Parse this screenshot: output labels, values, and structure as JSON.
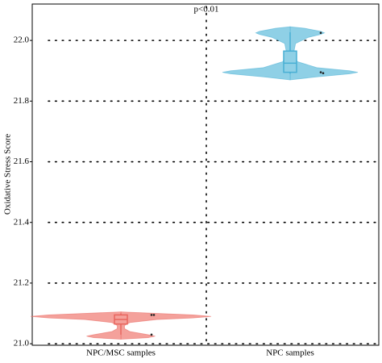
{
  "chart_data": {
    "type": "violin",
    "y_label": "Oxidative Stress Score",
    "annotation": "p<0.01",
    "categories": [
      "NPC/MSC samples",
      "NPC samples"
    ],
    "ylim": [
      20.995,
      22.12
    ],
    "yticks": [
      {
        "value": 21,
        "label": "21.0"
      },
      21.2,
      21.4,
      21.6,
      21.8,
      {
        "value": 22,
        "label": "22.0"
      }
    ],
    "grid": true,
    "series": [
      {
        "color": "#e8665f",
        "fill": "#f4a19b",
        "violin_y": [
          21.015,
          21.02,
          21.025,
          21.03,
          21.04,
          21.05,
          21.06,
          21.07,
          21.08,
          21.085,
          21.09,
          21.095,
          21.1,
          21.105
        ],
        "violin_width": [
          0,
          0.15,
          0.19,
          0.15,
          0.05,
          0.02,
          0.02,
          0.05,
          0.2,
          0.4,
          0.5,
          0.4,
          0.2,
          0
        ],
        "q1": 21.065,
        "median": 21.08,
        "q3": 21.095,
        "whisker_low": 21.03,
        "whisker_high": 21.1,
        "points": [
          21.095,
          21.095,
          21.03
        ]
      },
      {
        "color": "#49afd4",
        "fill": "#8fd0e6",
        "violin_y": [
          21.87,
          21.88,
          21.89,
          21.895,
          21.9,
          21.91,
          21.93,
          21.96,
          21.99,
          22.01,
          22.02,
          22.025,
          22.03,
          22.04,
          22.045
        ],
        "violin_width": [
          0,
          0.15,
          0.33,
          0.375,
          0.33,
          0.15,
          0.04,
          0.02,
          0.03,
          0.1,
          0.17,
          0.19,
          0.17,
          0.08,
          0
        ],
        "q1": 21.895,
        "median": 21.925,
        "q3": 21.965,
        "whisker_low": 21.89,
        "whisker_high": 22.027,
        "points": [
          22.025,
          21.892,
          21.895
        ]
      }
    ]
  }
}
